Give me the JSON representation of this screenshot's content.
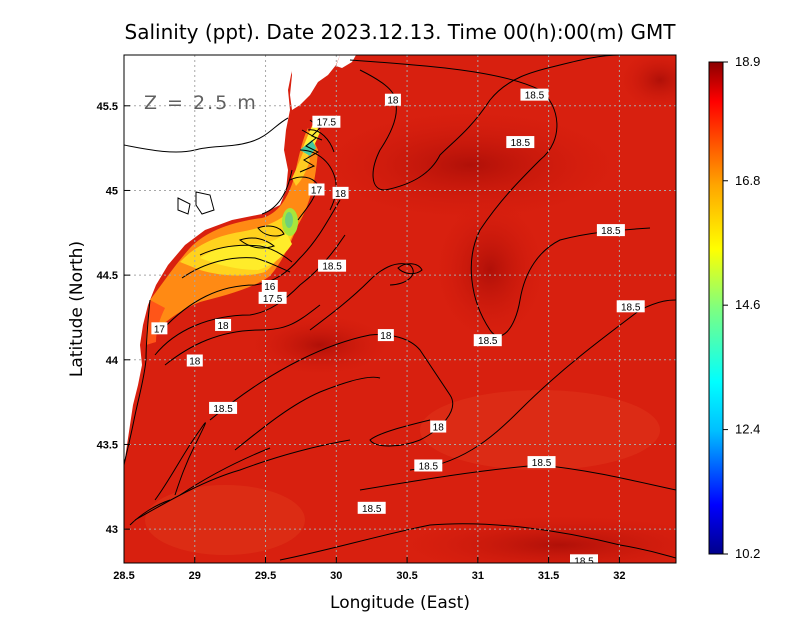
{
  "chart_data": {
    "type": "heatmap",
    "title": "Salinity (ppt). Date 2023.12.13. Time 00(h):00(m) GMT",
    "annotation": "Z = 2.5 m",
    "xlabel": "Longitude (East)",
    "ylabel": "Latitude (North)",
    "xlim": [
      28.5,
      32.4
    ],
    "ylim": [
      42.8,
      45.8
    ],
    "x_ticks": [
      "28.5",
      "29",
      "29.5",
      "30",
      "30.5",
      "31",
      "31.5",
      "32"
    ],
    "x_tick_values": [
      28.5,
      29,
      29.5,
      30,
      30.5,
      31,
      31.5,
      32
    ],
    "y_ticks": [
      "43",
      "43.5",
      "44",
      "44.5",
      "45",
      "45.5"
    ],
    "y_tick_values": [
      43,
      43.5,
      44,
      44.5,
      45,
      45.5
    ],
    "grid": true,
    "colorbar": {
      "min": 10.2,
      "max": 18.9,
      "tick_labels": [
        "18.9",
        "16.8",
        "14.6",
        "12.4",
        "10.2"
      ],
      "tick_values": [
        18.9,
        16.8,
        14.6,
        12.4,
        10.2
      ],
      "colors": [
        "#00008b",
        "#0000ff",
        "#00bfff",
        "#00ffff",
        "#7fff7f",
        "#ffff00",
        "#ffa500",
        "#ff4500",
        "#ff0000",
        "#8b0000"
      ]
    },
    "contour_labels": [
      {
        "text": "18",
        "lon": 30.4,
        "lat": 45.53
      },
      {
        "text": "18.5",
        "lon": 31.4,
        "lat": 45.56
      },
      {
        "text": "17.5",
        "lon": 29.93,
        "lat": 45.4
      },
      {
        "text": "18.5",
        "lon": 31.3,
        "lat": 45.28
      },
      {
        "text": "17",
        "lon": 29.86,
        "lat": 45.0
      },
      {
        "text": "18",
        "lon": 30.03,
        "lat": 44.98
      },
      {
        "text": "18.5",
        "lon": 31.94,
        "lat": 44.76
      },
      {
        "text": "18.5",
        "lon": 29.97,
        "lat": 44.55
      },
      {
        "text": "16",
        "lon": 29.53,
        "lat": 44.43
      },
      {
        "text": "17.5",
        "lon": 29.55,
        "lat": 44.36
      },
      {
        "text": "18",
        "lon": 29.2,
        "lat": 44.2
      },
      {
        "text": "17",
        "lon": 28.75,
        "lat": 44.18
      },
      {
        "text": "18",
        "lon": 30.35,
        "lat": 44.14
      },
      {
        "text": "18.5",
        "lon": 31.07,
        "lat": 44.11
      },
      {
        "text": "18.5",
        "lon": 32.08,
        "lat": 44.31
      },
      {
        "text": "18",
        "lon": 29.0,
        "lat": 43.99
      },
      {
        "text": "18.5",
        "lon": 29.2,
        "lat": 43.71
      },
      {
        "text": "18",
        "lon": 30.72,
        "lat": 43.6
      },
      {
        "text": "18.5",
        "lon": 31.45,
        "lat": 43.39
      },
      {
        "text": "18.5",
        "lon": 30.65,
        "lat": 43.37
      },
      {
        "text": "18.5",
        "lon": 30.25,
        "lat": 43.12
      },
      {
        "text": "18.5",
        "lon": 31.75,
        "lat": 42.81
      }
    ]
  }
}
